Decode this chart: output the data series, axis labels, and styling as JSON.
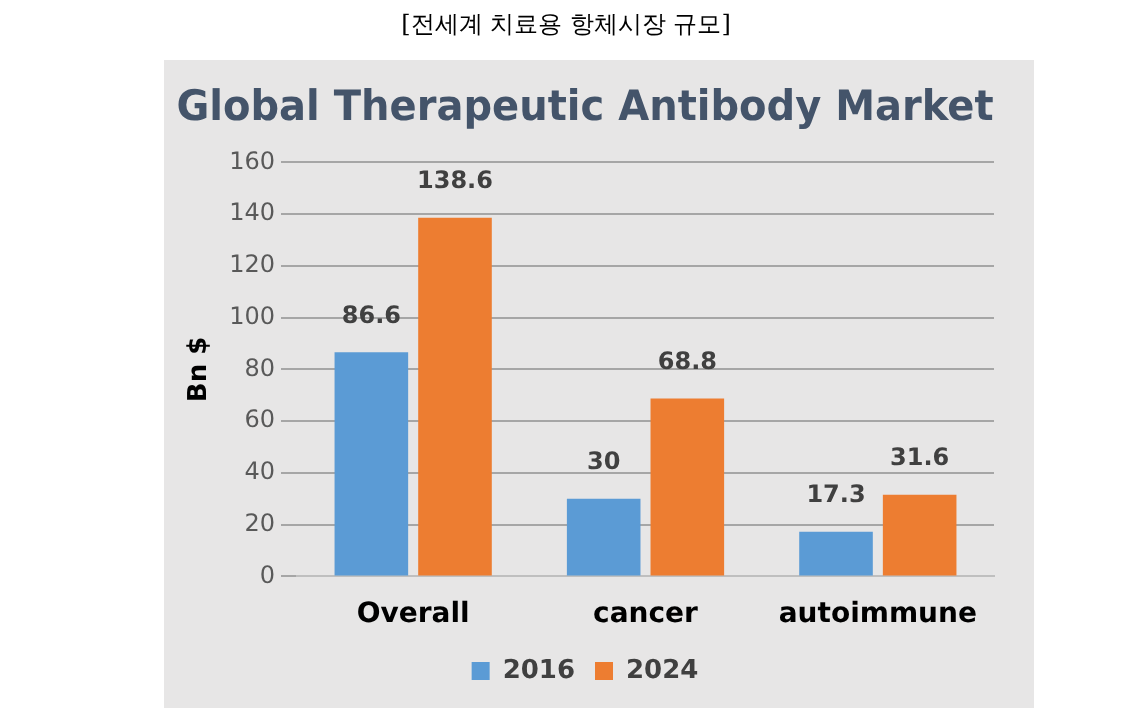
{
  "chart_data": {
    "type": "bar",
    "title": "[전세계 치료용 항체시장 규모]",
    "subtitle": "Global Therapeutic Antibody Market",
    "ylabel": "Bn $",
    "categories": [
      "Overall",
      "cancer",
      "autoimmune"
    ],
    "series": [
      {
        "name": "2016",
        "color": "#5b9bd5",
        "values": [
          86.6,
          30,
          17.3
        ]
      },
      {
        "name": "2024",
        "color": "#ed7d31",
        "values": [
          138.6,
          68.8,
          31.6
        ]
      }
    ],
    "ylim": [
      0,
      160
    ],
    "yticks": [
      0,
      20,
      40,
      60,
      80,
      100,
      120,
      140,
      160
    ],
    "grid": "y",
    "legend": "bottom",
    "data_labels": true
  }
}
